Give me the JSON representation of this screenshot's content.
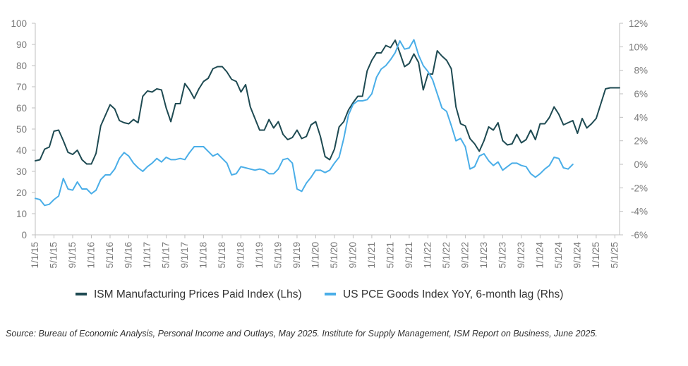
{
  "chart_data": {
    "type": "line",
    "title": "",
    "xlabel": "",
    "ylabel": "",
    "ylabel_right": "",
    "x_tick_labels": [
      "1/1/15",
      "5/1/15",
      "9/1/15",
      "1/1/16",
      "5/1/16",
      "9/1/16",
      "1/1/17",
      "5/1/17",
      "9/1/17",
      "1/1/18",
      "5/1/18",
      "9/1/18",
      "1/1/19",
      "5/1/19",
      "9/1/19",
      "1/1/20",
      "5/1/20",
      "9/1/20",
      "1/1/21",
      "5/1/21",
      "9/1/21",
      "1/1/22",
      "5/1/22",
      "9/1/22",
      "1/1/23",
      "5/1/23",
      "9/1/23",
      "1/1/24",
      "5/1/24",
      "9/1/24",
      "1/1/25",
      "5/1/25"
    ],
    "y_left_ticks": [
      "0",
      "10",
      "20",
      "30",
      "40",
      "50",
      "60",
      "70",
      "80",
      "90",
      "100"
    ],
    "y_right_ticks": [
      "-6%",
      "-4%",
      "-2%",
      "0%",
      "2%",
      "4%",
      "6%",
      "8%",
      "10%",
      "12%"
    ],
    "ylim_left": [
      0,
      100
    ],
    "ylim_right": [
      -6,
      12
    ],
    "grid": false,
    "legend_position": "bottom",
    "series": [
      {
        "name": "ISM Manufacturing Prices Paid Index (Lhs)",
        "axis": "left",
        "color": "#1e4a52",
        "start": "2015-01",
        "values": [
          35,
          35.5,
          40.5,
          41.5,
          49,
          49.5,
          44.5,
          39,
          38,
          40,
          35.5,
          33.5,
          33.5,
          38.5,
          51.5,
          56.5,
          61.5,
          59.5,
          54,
          53,
          52.5,
          54.5,
          53,
          65.5,
          68,
          67.5,
          69,
          68.5,
          60,
          53.5,
          62,
          62,
          71.5,
          68.5,
          64.5,
          69,
          72.5,
          74,
          78.5,
          79.5,
          79.5,
          77,
          73.5,
          72.5,
          67.5,
          71,
          60.5,
          55,
          49.5,
          49.5,
          54.5,
          50.5,
          53.5,
          47.5,
          45,
          46,
          49.5,
          45.5,
          46.5,
          52,
          53.5,
          46.5,
          37,
          35.5,
          40.5,
          51,
          53.5,
          59,
          62.5,
          65.5,
          65.5,
          77.5,
          82.5,
          86,
          86,
          89.5,
          88.5,
          92,
          86,
          79.5,
          81,
          85.5,
          81.5,
          68.5,
          76,
          76,
          87,
          84.5,
          82.5,
          78.5,
          60.5,
          52.5,
          51.5,
          45.5,
          43,
          39.5,
          44.5,
          51,
          49.5,
          53,
          44.5,
          42.5,
          43,
          47.5,
          43.5,
          45,
          49.5,
          45,
          52.5,
          52.5,
          55.5,
          60.5,
          57,
          52,
          53,
          54,
          48,
          55,
          50.5,
          52.5,
          55,
          62,
          69,
          69.5,
          69.5,
          69.5
        ]
      },
      {
        "name": "US PCE Goods Index YoY, 6-month lag (Rhs)",
        "axis": "right",
        "color": "#4aaee8",
        "start": "2015-01",
        "values": [
          -2.9,
          -3,
          -3.5,
          -3.4,
          -3,
          -2.7,
          -1.2,
          -2.1,
          -2.2,
          -1.5,
          -2.1,
          -2.1,
          -2.5,
          -2.2,
          -1.3,
          -0.9,
          -0.9,
          -0.4,
          0.5,
          1,
          0.7,
          0.1,
          -0.3,
          -0.6,
          -0.2,
          0.1,
          0.5,
          0.2,
          0.6,
          0.4,
          0.4,
          0.5,
          0.4,
          1,
          1.5,
          1.5,
          1.5,
          1.1,
          0.7,
          0.9,
          0.5,
          0.1,
          -0.9,
          -0.8,
          -0.2,
          -0.3,
          -0.4,
          -0.5,
          -0.4,
          -0.5,
          -0.8,
          -0.8,
          -0.4,
          0.4,
          0.5,
          0.1,
          -2.1,
          -2.3,
          -1.6,
          -1.1,
          -0.5,
          -0.5,
          -0.7,
          -0.5,
          0.1,
          0.6,
          2.2,
          4.2,
          5.1,
          5.4,
          5.4,
          5.5,
          6,
          7.4,
          8.1,
          8.4,
          8.9,
          9.5,
          10.5,
          9.8,
          9.9,
          10.6,
          9.3,
          8.4,
          7.9,
          7.2,
          6,
          4.8,
          4.5,
          3.3,
          2,
          2.2,
          1.5,
          -0.4,
          -0.2,
          0.7,
          0.9,
          0.3,
          -0.1,
          0.2,
          -0.5,
          -0.2,
          0.1,
          0.1,
          -0.1,
          -0.2,
          -0.8,
          -1.1,
          -0.8,
          -0.4,
          -0.1,
          0.6,
          0.5,
          -0.3,
          -0.4,
          0
        ]
      }
    ]
  },
  "source_text": "Source: Bureau of Economic Analysis, Personal Income and Outlays, May 2025. Institute for Supply Management, ISM Report on Business, June 2025."
}
